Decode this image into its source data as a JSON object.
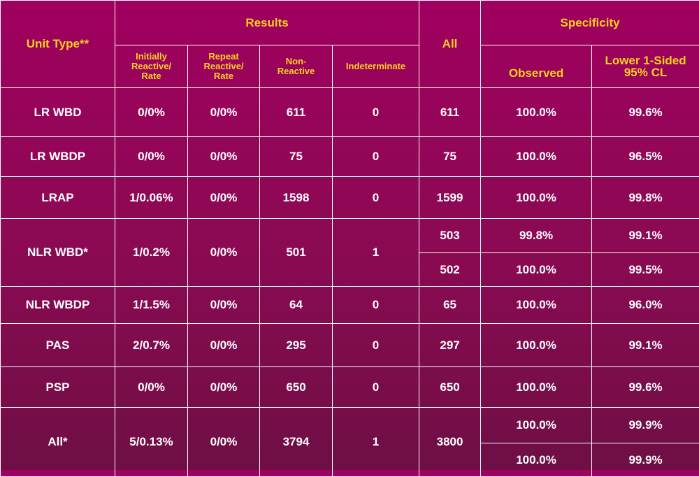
{
  "header": {
    "unit_type": "Unit Type**",
    "results": "Results",
    "all": "All",
    "specificity": "Specificity",
    "initially_reactive": [
      "Initially",
      "Reactive/",
      "Rate"
    ],
    "repeat_reactive": [
      "Repeat",
      "Reactive/",
      "Rate"
    ],
    "non_reactive": [
      "Non-",
      "Reactive"
    ],
    "indeterminate": "Indeterminate",
    "observed": "Observed",
    "lower_cl": [
      "Lower 1-Sided",
      "95% CL"
    ]
  },
  "rows": [
    {
      "unit": "LR WBD",
      "initial": "0/0%",
      "repeat": "0/0%",
      "nonreactive": "611",
      "indeterminate": "0",
      "sub": [
        {
          "all": "611",
          "observed": "100.0%",
          "lower": "99.6%"
        }
      ]
    },
    {
      "unit": "LR WBDP",
      "initial": "0/0%",
      "repeat": "0/0%",
      "nonreactive": "75",
      "indeterminate": "0",
      "sub": [
        {
          "all": "75",
          "observed": "100.0%",
          "lower": "96.5%"
        }
      ]
    },
    {
      "unit": "LRAP",
      "initial": "1/0.06%",
      "repeat": "0/0%",
      "nonreactive": "1598",
      "indeterminate": "0",
      "sub": [
        {
          "all": "1599",
          "observed": "100.0%",
          "lower": "99.8%"
        }
      ]
    },
    {
      "unit": "NLR WBD*",
      "initial": "1/0.2%",
      "repeat": "0/0%",
      "nonreactive": "501",
      "indeterminate": "1",
      "sub": [
        {
          "all": "503",
          "observed": "99.8%",
          "lower": "99.1%"
        },
        {
          "all": "502",
          "observed": "100.0%",
          "lower": "99.5%"
        }
      ]
    },
    {
      "unit": "NLR WBDP",
      "initial": "1/1.5%",
      "repeat": "0/0%",
      "nonreactive": "64",
      "indeterminate": "0",
      "sub": [
        {
          "all": "65",
          "observed": "100.0%",
          "lower": "96.0%"
        }
      ]
    },
    {
      "unit": "PAS",
      "initial": "2/0.7%",
      "repeat": "0/0%",
      "nonreactive": "295",
      "indeterminate": "0",
      "sub": [
        {
          "all": "297",
          "observed": "100.0%",
          "lower": "99.1%"
        }
      ]
    },
    {
      "unit": "PSP",
      "initial": "0/0%",
      "repeat": "0/0%",
      "nonreactive": "650",
      "indeterminate": "0",
      "sub": [
        {
          "all": "650",
          "observed": "100.0%",
          "lower": "99.6%"
        }
      ]
    },
    {
      "unit": "All*",
      "initial": "5/0.13%",
      "repeat": "0/0%",
      "nonreactive": "3794",
      "indeterminate": "1",
      "all_merged": "3800",
      "sub": [
        {
          "observed": "100.0%",
          "lower": "99.9%"
        },
        {
          "observed": "100.0%",
          "lower": "99.9%"
        }
      ]
    }
  ]
}
